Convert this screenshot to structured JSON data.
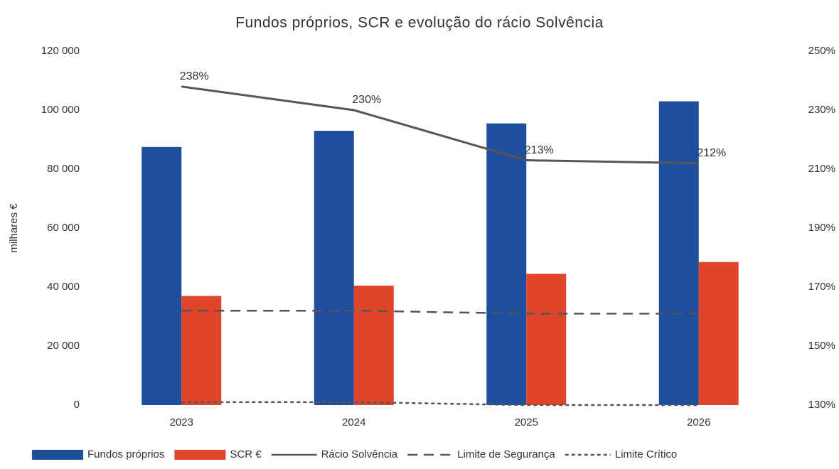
{
  "chart_data": {
    "type": "bar",
    "title": "Fundos próprios, SCR e evolução do rácio Solvência",
    "ylabel": "milhares €",
    "categories": [
      "2023",
      "2024",
      "2025",
      "2026"
    ],
    "series": [
      {
        "name": "Fundos próprios",
        "type": "bar",
        "color": "#1f4e9c",
        "values": [
          87500,
          93000,
          95500,
          103000
        ]
      },
      {
        "name": "SCR €",
        "type": "bar",
        "color": "#e0452b",
        "values": [
          37000,
          40500,
          44500,
          48500
        ]
      },
      {
        "name": "Rácio Solvência",
        "type": "line",
        "axis": "y2",
        "color": "#555555",
        "dash": "none",
        "values": [
          238,
          230,
          213,
          212
        ],
        "value_labels": [
          "238%",
          "230%",
          "213%",
          "212%"
        ]
      },
      {
        "name": "Limite de Segurança",
        "type": "line",
        "axis": "y2",
        "color": "#555555",
        "dash": "14 9",
        "values": [
          162,
          162,
          161,
          161
        ]
      },
      {
        "name": "Limite Crítico",
        "type": "line",
        "axis": "y2",
        "color": "#555555",
        "dash": "5 4",
        "values": [
          131,
          131,
          130,
          130
        ]
      }
    ],
    "ylim": [
      0,
      120000
    ],
    "yticks": [
      {
        "value": 0,
        "label": "0"
      },
      {
        "value": 20000,
        "label": "20 000"
      },
      {
        "value": 40000,
        "label": "40 000"
      },
      {
        "value": 60000,
        "label": "60 000"
      },
      {
        "value": 80000,
        "label": "80 000"
      },
      {
        "value": 100000,
        "label": "100 000"
      },
      {
        "value": 120000,
        "label": "120 000"
      }
    ],
    "y2lim": [
      130,
      250
    ],
    "y2ticks": [
      {
        "value": 130,
        "label": "130%"
      },
      {
        "value": 150,
        "label": "150%"
      },
      {
        "value": 170,
        "label": "170%"
      },
      {
        "value": 190,
        "label": "190%"
      },
      {
        "value": 210,
        "label": "210%"
      },
      {
        "value": 230,
        "label": "230%"
      },
      {
        "value": 250,
        "label": "250%"
      }
    ],
    "grid": false,
    "legend": "bottom"
  }
}
